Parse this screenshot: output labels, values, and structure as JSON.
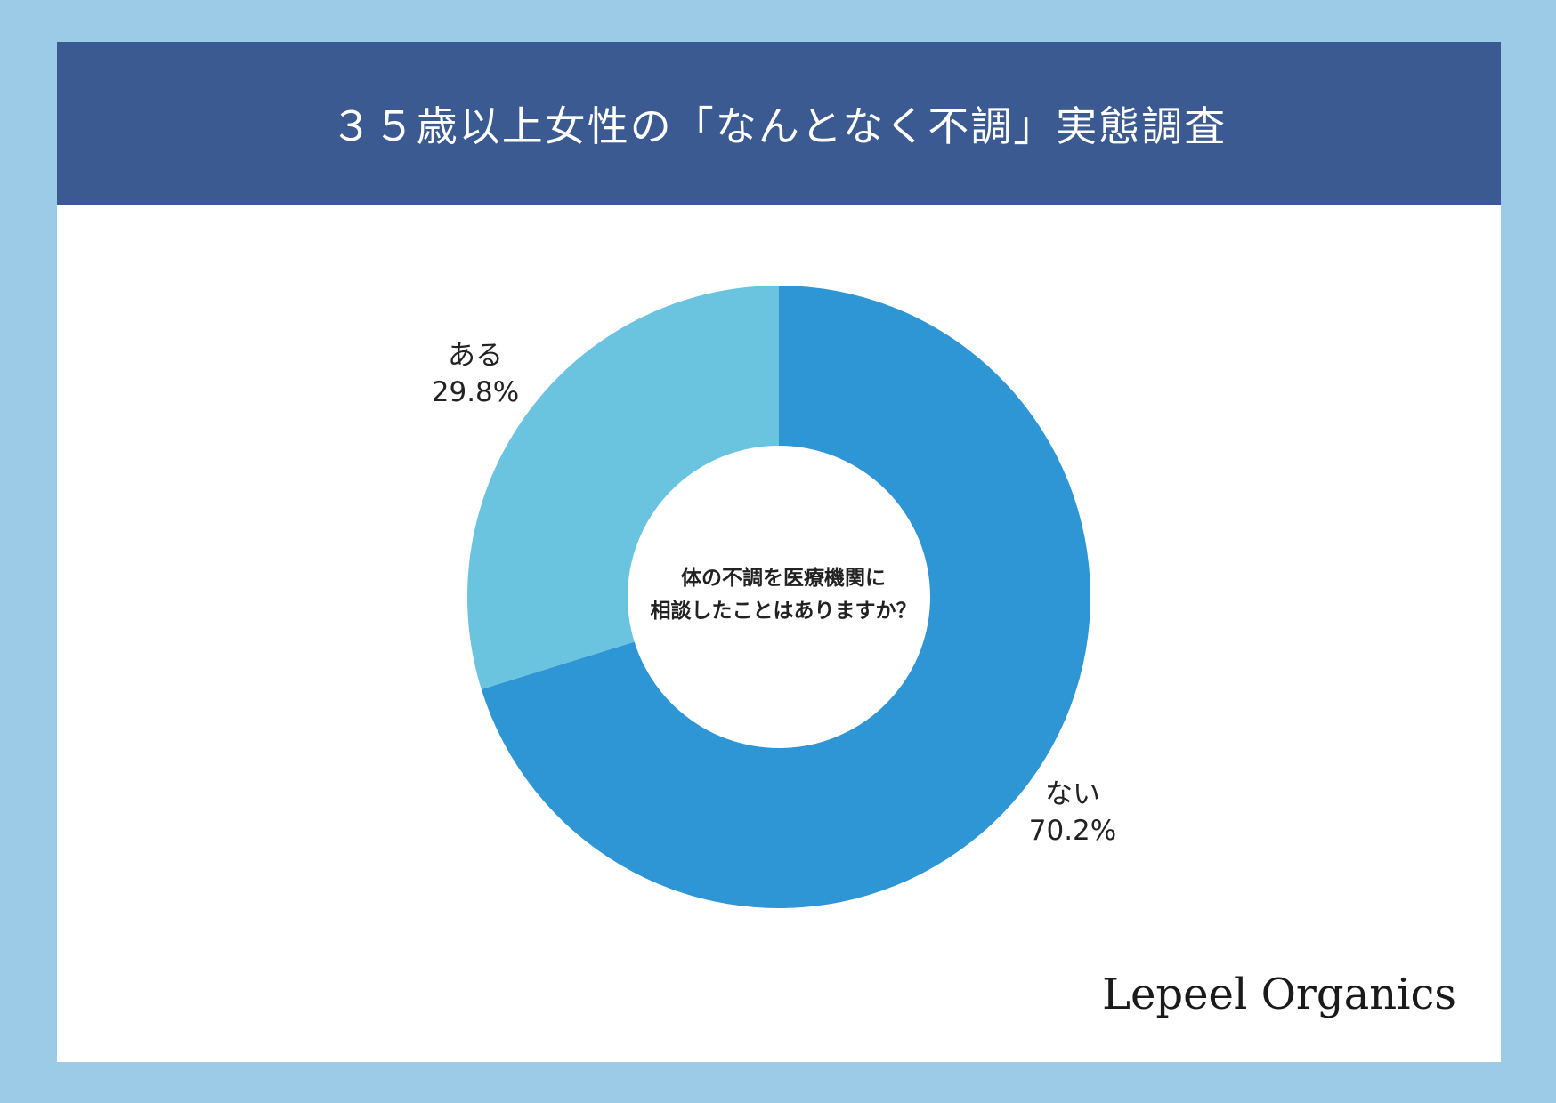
{
  "header": {
    "title": "３５歳以上女性の「なんとなく不調」実態調査"
  },
  "chart_data": {
    "type": "pie",
    "donut": true,
    "center_text": [
      "体の不調を医療機関に",
      "相談したことはありますか？"
    ],
    "slices": [
      {
        "label": "ない",
        "value": 70.2,
        "display": "70.2%",
        "color": "#2e96d5",
        "highlight": true
      },
      {
        "label": "ある",
        "value": 29.8,
        "display": "29.8%",
        "color": "#6bc4df",
        "highlight": false
      }
    ]
  },
  "brand": {
    "name": "Lepeel Organics"
  },
  "colors": {
    "frame": "#9bcbe7",
    "banner": "#3b5a91",
    "highlight": "#f6ef7b"
  }
}
